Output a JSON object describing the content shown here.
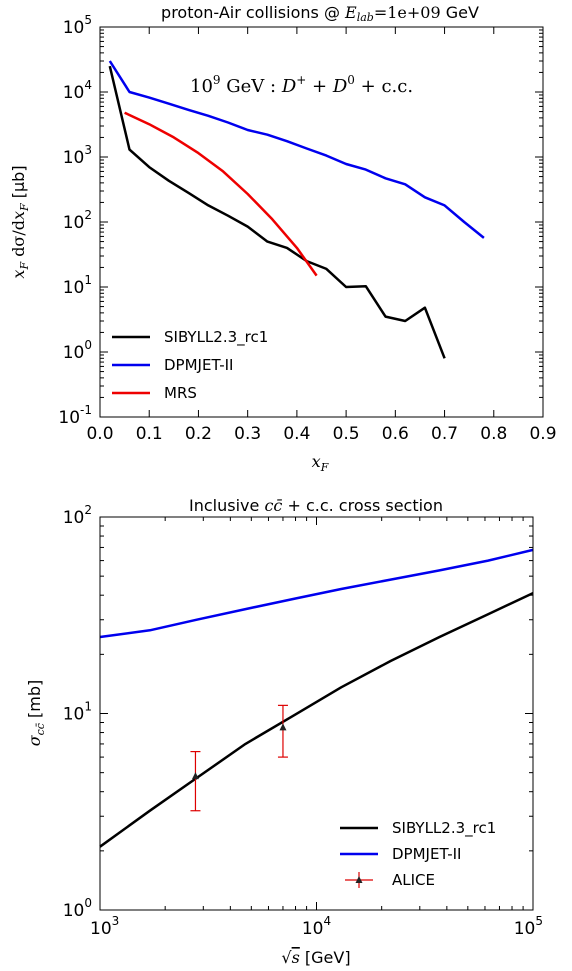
{
  "chart_data": [
    {
      "type": "line",
      "title": "proton-Air collisions @ E_lab=1e+09 GeV",
      "title_prefix": "proton-Air collisions @ ",
      "title_math_var": "E",
      "title_math_sub": "lab",
      "title_math_rest": "=1e+09",
      "title_suffix": " GeV",
      "annotation": "10^9 GeV : D^+ + D^0 + c.c.",
      "xlabel": "x_F",
      "ylabel": "x_F dσ/dx_F [μb]",
      "xlim": [
        0.0,
        0.9
      ],
      "ylim": [
        0.1,
        100000
      ],
      "yscale": "log",
      "xticks": [
        "0.0",
        "0.1",
        "0.2",
        "0.3",
        "0.4",
        "0.5",
        "0.6",
        "0.7",
        "0.8",
        "0.9"
      ],
      "yticks": [
        0.1,
        1,
        10,
        100,
        1000,
        10000,
        100000
      ],
      "ytick_labels": [
        {
          "base": "10",
          "exp": "-1"
        },
        {
          "base": "10",
          "exp": "0"
        },
        {
          "base": "10",
          "exp": "1"
        },
        {
          "base": "10",
          "exp": "2"
        },
        {
          "base": "10",
          "exp": "3"
        },
        {
          "base": "10",
          "exp": "4"
        },
        {
          "base": "10",
          "exp": "5"
        }
      ],
      "legend_position": "bottom-left",
      "series": [
        {
          "name": "SIBYLL2.3_rc1",
          "color": "#000000",
          "x": [
            0.02,
            0.06,
            0.1,
            0.14,
            0.18,
            0.22,
            0.26,
            0.3,
            0.34,
            0.38,
            0.42,
            0.46,
            0.5,
            0.54,
            0.58,
            0.62,
            0.66,
            0.7
          ],
          "y": [
            25000,
            1300,
            700,
            430,
            280,
            180,
            125,
            85,
            50,
            40,
            25,
            19,
            10,
            10.3,
            3.5,
            3.0,
            4.8,
            0.8
          ]
        },
        {
          "name": "DPMJET-II",
          "color": "#0000ee",
          "x": [
            0.02,
            0.06,
            0.1,
            0.14,
            0.18,
            0.22,
            0.26,
            0.3,
            0.34,
            0.38,
            0.42,
            0.46,
            0.5,
            0.54,
            0.58,
            0.62,
            0.66,
            0.7,
            0.74,
            0.78
          ],
          "y": [
            30000,
            10000,
            8200,
            6600,
            5300,
            4300,
            3400,
            2600,
            2200,
            1750,
            1350,
            1050,
            780,
            640,
            470,
            380,
            240,
            180,
            100,
            57
          ]
        },
        {
          "name": "MRS",
          "color": "#ee0000",
          "x": [
            0.05,
            0.1,
            0.15,
            0.2,
            0.25,
            0.3,
            0.35,
            0.4,
            0.44
          ],
          "y": [
            4800,
            3200,
            2000,
            1150,
            600,
            270,
            110,
            40,
            15
          ]
        }
      ]
    },
    {
      "type": "line",
      "title": "Inclusive c c̄ + c.c. cross section",
      "title_prefix": "Inclusive ",
      "title_suffix": " + c.c. cross section",
      "title_math": "c c̄",
      "xlabel": "√s [GeV]",
      "xlabel_unit": " [GeV]",
      "ylabel": "σ_cc̄ [mb]",
      "ylabel_unit": " [mb]",
      "xlim": [
        1000,
        100000
      ],
      "ylim": [
        1,
        100
      ],
      "xscale": "log",
      "yscale": "log",
      "xticks": [
        1000,
        10000,
        100000
      ],
      "xtick_labels": [
        {
          "base": "10",
          "exp": "3"
        },
        {
          "base": "10",
          "exp": "4"
        },
        {
          "base": "10",
          "exp": "5"
        }
      ],
      "yticks": [
        1,
        10,
        100
      ],
      "ytick_labels": [
        {
          "base": "10",
          "exp": "0"
        },
        {
          "base": "10",
          "exp": "1"
        },
        {
          "base": "10",
          "exp": "2"
        }
      ],
      "legend_position": "bottom-right",
      "series": [
        {
          "name": "SIBYLL2.3_rc1",
          "color": "#000000",
          "x": [
            1000,
            1700,
            2800,
            4700,
            8000,
            13000,
            22000,
            37000,
            62000,
            100000
          ],
          "y": [
            2.1,
            3.2,
            4.7,
            7.0,
            9.9,
            13.6,
            18.5,
            24.5,
            32.0,
            41.0
          ]
        },
        {
          "name": "DPMJET-II",
          "color": "#0000ee",
          "x": [
            1000,
            1700,
            2800,
            4700,
            8000,
            13000,
            22000,
            37000,
            62000,
            100000
          ],
          "y": [
            24.5,
            26.5,
            30.0,
            34.0,
            38.5,
            43.0,
            48.0,
            53.5,
            60.0,
            68.0
          ]
        },
        {
          "name": "ALICE",
          "color": "#dd0000",
          "marker": "triangle",
          "points": [
            {
              "x": 2760,
              "y": 4.8,
              "ylow": 3.2,
              "yhigh": 6.4
            },
            {
              "x": 7000,
              "y": 8.5,
              "ylow": 6.0,
              "yhigh": 11.0
            }
          ]
        }
      ]
    }
  ]
}
